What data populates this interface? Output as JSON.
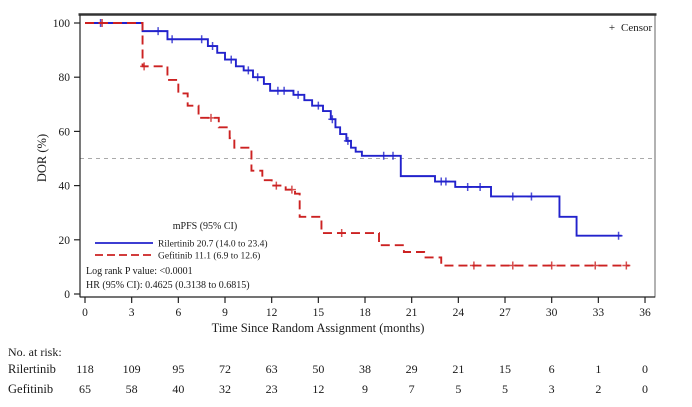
{
  "chart_data": {
    "type": "line",
    "subtype": "kaplan-meier-step",
    "xlabel": "Time Since Random Assignment (months)",
    "ylabel": "DOR (%)",
    "xlim": [
      0,
      36
    ],
    "ylim": [
      0,
      100
    ],
    "xticks": [
      0,
      3,
      6,
      9,
      12,
      15,
      18,
      21,
      24,
      27,
      30,
      33,
      36
    ],
    "yticks": [
      0,
      20,
      40,
      60,
      80,
      100
    ],
    "grid": "off",
    "reference_line_y": 50,
    "censor_marker": "+",
    "censor_label": "Censor",
    "series": [
      {
        "name": "Rilertinib",
        "color": "#2222cc",
        "style": "solid",
        "end": 34.5,
        "steps": [
          [
            0,
            100
          ],
          [
            3.7,
            97
          ],
          [
            5.3,
            94
          ],
          [
            7.9,
            91.5
          ],
          [
            8.5,
            89
          ],
          [
            9.0,
            86.5
          ],
          [
            9.7,
            84
          ],
          [
            10.2,
            82.5
          ],
          [
            10.8,
            80
          ],
          [
            11.5,
            77.5
          ],
          [
            11.9,
            75
          ],
          [
            13.4,
            73.5
          ],
          [
            14.1,
            71.5
          ],
          [
            14.6,
            69.5
          ],
          [
            15.3,
            67.5
          ],
          [
            15.8,
            64.5
          ],
          [
            16.1,
            61.5
          ],
          [
            16.4,
            59
          ],
          [
            16.8,
            56.5
          ],
          [
            17.1,
            54
          ],
          [
            17.4,
            52.5
          ],
          [
            17.8,
            51
          ],
          [
            20.3,
            43.5
          ],
          [
            22.5,
            41.5
          ],
          [
            23.8,
            39.5
          ],
          [
            26.1,
            36
          ],
          [
            30.5,
            28.5
          ],
          [
            31.6,
            21.5
          ]
        ],
        "censors": [
          [
            1.0,
            100
          ],
          [
            4.7,
            97
          ],
          [
            5.6,
            94
          ],
          [
            7.5,
            94
          ],
          [
            8.2,
            91.5
          ],
          [
            9.4,
            86.5
          ],
          [
            10.5,
            82.5
          ],
          [
            11.1,
            80
          ],
          [
            12.4,
            75
          ],
          [
            12.8,
            75
          ],
          [
            13.7,
            73.5
          ],
          [
            15.0,
            69.5
          ],
          [
            15.9,
            64.5
          ],
          [
            16.9,
            56.5
          ],
          [
            19.2,
            51
          ],
          [
            19.8,
            51
          ],
          [
            22.9,
            41.5
          ],
          [
            23.2,
            41.5
          ],
          [
            24.6,
            39.5
          ],
          [
            25.4,
            39.5
          ],
          [
            27.5,
            36
          ],
          [
            28.7,
            36
          ],
          [
            34.3,
            21.5
          ]
        ]
      },
      {
        "name": "Gefitinib",
        "color": "#cc2222",
        "style": "dashed",
        "end": 35.0,
        "steps": [
          [
            0,
            100
          ],
          [
            3.7,
            84
          ],
          [
            5.3,
            79
          ],
          [
            6.0,
            74
          ],
          [
            6.6,
            69.5
          ],
          [
            7.3,
            65
          ],
          [
            8.6,
            61.5
          ],
          [
            9.3,
            57.5
          ],
          [
            9.6,
            54
          ],
          [
            10.7,
            45.5
          ],
          [
            11.4,
            42
          ],
          [
            12.0,
            40
          ],
          [
            12.9,
            38.5
          ],
          [
            13.5,
            37
          ],
          [
            13.8,
            28.5
          ],
          [
            15.2,
            22.5
          ],
          [
            18.9,
            18
          ],
          [
            20.5,
            15.5
          ],
          [
            21.8,
            13.5
          ],
          [
            22.9,
            10.5
          ]
        ],
        "censors": [
          [
            1.1,
            100
          ],
          [
            3.8,
            84
          ],
          [
            8.1,
            65
          ],
          [
            12.3,
            40
          ],
          [
            13.3,
            38.5
          ],
          [
            16.5,
            22.5
          ],
          [
            25.0,
            10.5
          ],
          [
            27.5,
            10.5
          ],
          [
            30.0,
            10.5
          ],
          [
            32.8,
            10.5
          ],
          [
            34.8,
            10.5
          ]
        ]
      }
    ],
    "legend": {
      "header": "mPFS (95% CI)",
      "entries": [
        {
          "label": "Rilertinib 20.7 (14.0 to 23.4)"
        },
        {
          "label": "Gefitinib 11.1 (6.9 to 12.6)"
        }
      ],
      "logrank": "Log rank P value: <0.0001",
      "hr": "HR (95% CI): 0.4625 (0.3138 to 0.6815)"
    },
    "risk_table": {
      "title": "No. at risk:",
      "times": [
        0,
        3,
        6,
        9,
        12,
        15,
        18,
        21,
        24,
        27,
        30,
        33,
        36
      ],
      "rows": [
        {
          "name": "Rilertinib",
          "values": [
            118,
            109,
            95,
            72,
            63,
            50,
            38,
            29,
            21,
            15,
            6,
            1,
            0
          ]
        },
        {
          "name": "Gefitinib",
          "values": [
            65,
            58,
            40,
            32,
            23,
            12,
            9,
            7,
            5,
            5,
            3,
            2,
            0
          ]
        }
      ]
    }
  }
}
